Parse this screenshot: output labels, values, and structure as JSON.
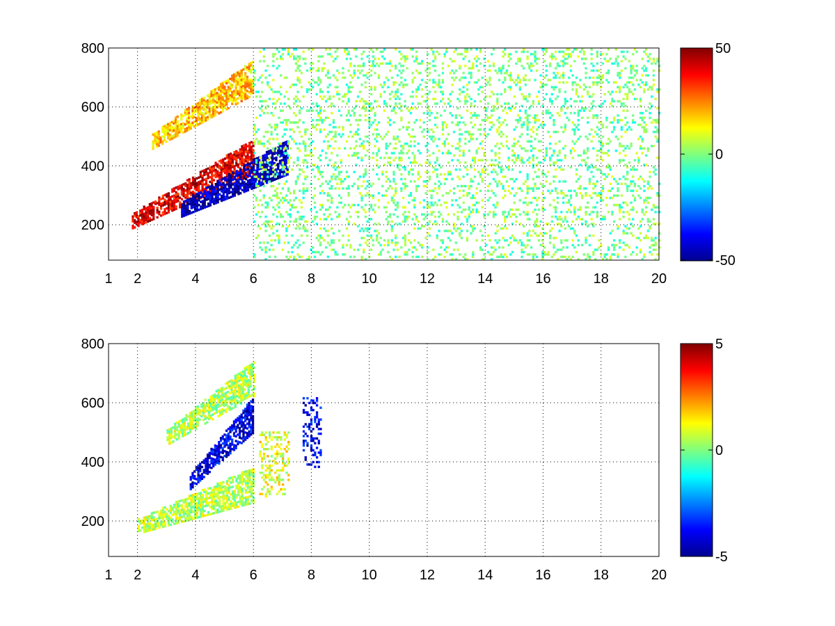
{
  "chart_data": [
    {
      "type": "heatmap",
      "title": "",
      "xlabel": "",
      "ylabel": "",
      "xlim": [
        1,
        20
      ],
      "ylim": [
        80,
        800
      ],
      "x_ticks": [
        1,
        2,
        4,
        6,
        8,
        10,
        12,
        14,
        16,
        18,
        20
      ],
      "x_tick_labels": [
        "1",
        "2",
        "4",
        "6",
        "8",
        "10",
        "12",
        "14",
        "16",
        "18",
        "20"
      ],
      "y_ticks": [
        200,
        400,
        600,
        800
      ],
      "y_tick_labels": [
        "200",
        "400",
        "600",
        "800"
      ],
      "grid": "dotted",
      "colormap": "jet",
      "colorbar": {
        "min": -50,
        "max": 50,
        "ticks": [
          50,
          0,
          -50
        ],
        "tick_labels": [
          "50",
          "0",
          "-50"
        ]
      },
      "features": [
        {
          "description": "positive band",
          "x_range": [
            1.8,
            6.0
          ],
          "y_start": 210,
          "y_end": 430,
          "value": 40
        },
        {
          "description": "negative band",
          "x_range": [
            3.5,
            7.2
          ],
          "y_start": 250,
          "y_end": 430,
          "value": -45
        },
        {
          "description": "upper positive band",
          "x_range": [
            2.5,
            6.0
          ],
          "y_start": 480,
          "y_end": 700,
          "value": 18
        },
        {
          "description": "near-zero scattered columns",
          "x_range": [
            6.0,
            20.0
          ],
          "y_range": [
            80,
            800
          ],
          "value": 0
        }
      ]
    },
    {
      "type": "heatmap",
      "title": "",
      "xlabel": "",
      "ylabel": "",
      "xlim": [
        1,
        20
      ],
      "ylim": [
        80,
        800
      ],
      "x_ticks": [
        1,
        2,
        4,
        6,
        8,
        10,
        12,
        14,
        16,
        18,
        20
      ],
      "x_tick_labels": [
        "1",
        "2",
        "4",
        "6",
        "8",
        "10",
        "12",
        "14",
        "16",
        "18",
        "20"
      ],
      "y_ticks": [
        200,
        400,
        600,
        800
      ],
      "y_tick_labels": [
        "200",
        "400",
        "600",
        "800"
      ],
      "grid": "dotted",
      "colormap": "jet",
      "colorbar": {
        "min": -5,
        "max": 5,
        "ticks": [
          5,
          0,
          -5
        ],
        "tick_labels": [
          "5",
          "0",
          "-5"
        ]
      },
      "features": [
        {
          "description": "low band",
          "x_range": [
            2.0,
            6.0
          ],
          "y_start": 180,
          "y_end": 320,
          "value": 0.5
        },
        {
          "description": "negative band",
          "x_range": [
            3.8,
            6.0
          ],
          "y_start": 330,
          "y_end": 560,
          "value": -4
        },
        {
          "description": "upper band",
          "x_range": [
            3.0,
            6.0
          ],
          "y_start": 480,
          "y_end": 680,
          "value": 0.5
        },
        {
          "description": "right cluster",
          "x_range": [
            6.2,
            7.2
          ],
          "y_range": [
            280,
            500
          ],
          "value": 1
        },
        {
          "description": "isolated points near 8",
          "x_range": [
            7.7,
            8.3
          ],
          "y_range": [
            380,
            620
          ],
          "value": -4
        }
      ]
    }
  ]
}
